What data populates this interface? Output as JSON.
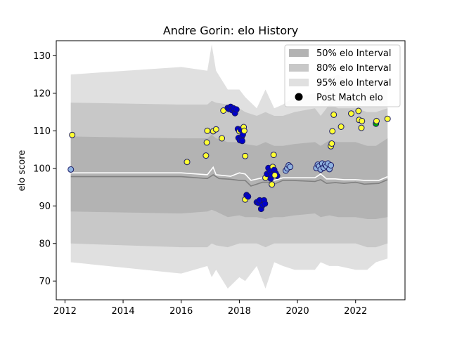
{
  "chart_data": {
    "type": "scatter",
    "title": "Andre Gorin: elo History",
    "xlabel": "",
    "ylabel": "elo score",
    "xlim": [
      2011.7,
      2023.7
    ],
    "ylim": [
      65,
      134
    ],
    "xticks": [
      2012,
      2014,
      2016,
      2018,
      2020,
      2022
    ],
    "yticks": [
      70,
      80,
      90,
      100,
      110,
      120,
      130
    ],
    "grid": false,
    "legend": {
      "position": "top-right",
      "entries": [
        {
          "label": "50% elo Interval",
          "color": "#b3b3b3"
        },
        {
          "label": "80% elo Interval",
          "color": "#c8c8c8"
        },
        {
          "label": "95% elo Interval",
          "color": "#e0e0e0"
        },
        {
          "label": "Post Match elo",
          "color": "#000000"
        }
      ]
    },
    "bands": {
      "x": [
        2012.2,
        2016.0,
        2016.9,
        2017.05,
        2017.2,
        2017.6,
        2018.0,
        2018.2,
        2018.6,
        2018.9,
        2019.2,
        2019.5,
        2019.9,
        2020.6,
        2020.8,
        2021.1,
        2021.4,
        2022.0,
        2022.4,
        2022.7,
        2023.1
      ],
      "q95_high": [
        125,
        127,
        126,
        133,
        126,
        121,
        121,
        119,
        116,
        121,
        116,
        117,
        119,
        120,
        117,
        124,
        125,
        122,
        123,
        122,
        123
      ],
      "q95_low": [
        75,
        72,
        74,
        71,
        73,
        68,
        71,
        70,
        74,
        68,
        75,
        74,
        73,
        73,
        75,
        74,
        74,
        73,
        73,
        75,
        76
      ],
      "q80_high": [
        117.5,
        117,
        117,
        118,
        117.5,
        117,
        116,
        115,
        114,
        115,
        114,
        114,
        115,
        116,
        114,
        117,
        116,
        116,
        115,
        115,
        116
      ],
      "q80_low": [
        80,
        79,
        79,
        80,
        79.5,
        79,
        80,
        80,
        80,
        79,
        80,
        80,
        80,
        80,
        80,
        80,
        80,
        80,
        79,
        79,
        80
      ],
      "q50_high": [
        108.5,
        108,
        108,
        109,
        108,
        107,
        107,
        106.5,
        106,
        107,
        106,
        106,
        106.5,
        107,
        106,
        107.5,
        107,
        107,
        106,
        106,
        108
      ],
      "q50_low": [
        88.5,
        88,
        88.5,
        89,
        88.5,
        87,
        87.5,
        87,
        87,
        86.5,
        87,
        87,
        87.5,
        88,
        87,
        87.5,
        87,
        87,
        86.5,
        86.5,
        87
      ]
    },
    "mean_line": {
      "name": "",
      "color": "#808080",
      "x": [
        2012.2,
        2016.0,
        2016.9,
        2017.1,
        2017.3,
        2017.7,
        2018.0,
        2018.2,
        2018.4,
        2018.8,
        2019.0,
        2019.2,
        2019.5,
        2019.8,
        2020.6,
        2020.8,
        2021.0,
        2021.3,
        2021.6,
        2022.0,
        2022.3,
        2022.8,
        2023.1
      ],
      "y": [
        97.8,
        97.8,
        97.3,
        98.3,
        97.3,
        97.1,
        96.8,
        96.8,
        95.3,
        96.3,
        96.3,
        95.8,
        96.8,
        96.8,
        96.5,
        97.0,
        96.0,
        96.2,
        96.0,
        96.3,
        95.8,
        96.0,
        97.0
      ]
    },
    "median_line": {
      "name": "",
      "color": "#ffffff",
      "x": [
        2012.2,
        2016.0,
        2016.9,
        2017.1,
        2017.2,
        2017.7,
        2018.0,
        2018.2,
        2018.4,
        2018.8,
        2019.0,
        2019.2,
        2019.5,
        2019.8,
        2020.6,
        2020.8,
        2021.0,
        2021.3,
        2021.6,
        2022.0,
        2022.3,
        2022.8,
        2023.1
      ],
      "y": [
        98.8,
        98.8,
        98.3,
        100.3,
        98.3,
        97.9,
        98.8,
        98.5,
        96.8,
        97.5,
        97.5,
        96.8,
        97.5,
        97.5,
        97.5,
        98.5,
        97.2,
        97.2,
        97.0,
        97.0,
        96.8,
        96.8,
        97.8
      ]
    },
    "points": [
      {
        "x": 2012.2,
        "y": 99.7,
        "fill": "#8fb2e0"
      },
      {
        "x": 2012.25,
        "y": 108.9,
        "fill": "#ffff33"
      },
      {
        "x": 2016.2,
        "y": 101.7,
        "fill": "#ffff33"
      },
      {
        "x": 2016.85,
        "y": 103.4,
        "fill": "#ffff33"
      },
      {
        "x": 2016.88,
        "y": 106.9,
        "fill": "#ffff33"
      },
      {
        "x": 2016.9,
        "y": 110.0,
        "fill": "#ffff33"
      },
      {
        "x": 2017.1,
        "y": 109.9,
        "fill": "#ffff33"
      },
      {
        "x": 2017.2,
        "y": 110.4,
        "fill": "#ffff33"
      },
      {
        "x": 2017.4,
        "y": 108.0,
        "fill": "#ffff33"
      },
      {
        "x": 2017.45,
        "y": 115.4,
        "fill": "#ffff33"
      },
      {
        "x": 2017.6,
        "y": 116.1,
        "fill": "#0000cc"
      },
      {
        "x": 2017.65,
        "y": 115.8,
        "fill": "#0000cc"
      },
      {
        "x": 2017.7,
        "y": 116.4,
        "fill": "#0000cc"
      },
      {
        "x": 2017.75,
        "y": 115.5,
        "fill": "#0000cc"
      },
      {
        "x": 2017.8,
        "y": 116.0,
        "fill": "#0000cc"
      },
      {
        "x": 2017.85,
        "y": 114.7,
        "fill": "#0000cc"
      },
      {
        "x": 2017.9,
        "y": 115.7,
        "fill": "#0000cc"
      },
      {
        "x": 2017.95,
        "y": 110.5,
        "fill": "#0000cc"
      },
      {
        "x": 2017.97,
        "y": 108.1,
        "fill": "#0000cc"
      },
      {
        "x": 2018.0,
        "y": 109.9,
        "fill": "#ffff33"
      },
      {
        "x": 2018.02,
        "y": 107.5,
        "fill": "#0000cc"
      },
      {
        "x": 2018.05,
        "y": 110.3,
        "fill": "#0000cc"
      },
      {
        "x": 2018.08,
        "y": 108.3,
        "fill": "#0000cc"
      },
      {
        "x": 2018.1,
        "y": 107.3,
        "fill": "#0000cc"
      },
      {
        "x": 2018.12,
        "y": 109.0,
        "fill": "#0000cc"
      },
      {
        "x": 2018.15,
        "y": 111.0,
        "fill": "#ffff33"
      },
      {
        "x": 2018.17,
        "y": 110.0,
        "fill": "#ffff33"
      },
      {
        "x": 2018.2,
        "y": 103.3,
        "fill": "#ffff33"
      },
      {
        "x": 2018.2,
        "y": 91.7,
        "fill": "#ffff33"
      },
      {
        "x": 2018.25,
        "y": 92.9,
        "fill": "#0000cc"
      },
      {
        "x": 2018.3,
        "y": 92.5,
        "fill": "#0000cc"
      },
      {
        "x": 2018.6,
        "y": 91.0,
        "fill": "#0000cc"
      },
      {
        "x": 2018.65,
        "y": 90.8,
        "fill": "#0000cc"
      },
      {
        "x": 2018.7,
        "y": 91.5,
        "fill": "#0000cc"
      },
      {
        "x": 2018.75,
        "y": 89.2,
        "fill": "#0000cc"
      },
      {
        "x": 2018.8,
        "y": 90.2,
        "fill": "#0000cc"
      },
      {
        "x": 2018.85,
        "y": 91.5,
        "fill": "#0000cc"
      },
      {
        "x": 2018.88,
        "y": 90.6,
        "fill": "#0000cc"
      },
      {
        "x": 2018.9,
        "y": 97.5,
        "fill": "#ffff33"
      },
      {
        "x": 2018.95,
        "y": 98.5,
        "fill": "#0000cc"
      },
      {
        "x": 2019.0,
        "y": 100.1,
        "fill": "#0000cc"
      },
      {
        "x": 2019.05,
        "y": 99.2,
        "fill": "#0000cc"
      },
      {
        "x": 2019.08,
        "y": 97.3,
        "fill": "#0000cc"
      },
      {
        "x": 2019.1,
        "y": 98.3,
        "fill": "#0000cc"
      },
      {
        "x": 2019.12,
        "y": 95.7,
        "fill": "#ffff33"
      },
      {
        "x": 2019.15,
        "y": 100.4,
        "fill": "#ffff33"
      },
      {
        "x": 2019.18,
        "y": 103.6,
        "fill": "#ffff33"
      },
      {
        "x": 2019.2,
        "y": 99.6,
        "fill": "#0000cc"
      },
      {
        "x": 2019.25,
        "y": 98.7,
        "fill": "#0000cc"
      },
      {
        "x": 2019.3,
        "y": 98.0,
        "fill": "#0000cc"
      },
      {
        "x": 2019.22,
        "y": 98.2,
        "fill": "#ffff33"
      },
      {
        "x": 2019.6,
        "y": 99.4,
        "fill": "#8fb2e0"
      },
      {
        "x": 2019.65,
        "y": 100.0,
        "fill": "#8fb2e0"
      },
      {
        "x": 2019.7,
        "y": 100.8,
        "fill": "#8fb2e0"
      },
      {
        "x": 2019.75,
        "y": 100.4,
        "fill": "#8fb2e0"
      },
      {
        "x": 2020.65,
        "y": 100.1,
        "fill": "#8fb2e0"
      },
      {
        "x": 2020.7,
        "y": 101.0,
        "fill": "#8fb2e0"
      },
      {
        "x": 2020.75,
        "y": 100.6,
        "fill": "#8fb2e0"
      },
      {
        "x": 2020.8,
        "y": 99.7,
        "fill": "#8fb2e0"
      },
      {
        "x": 2020.85,
        "y": 101.3,
        "fill": "#8fb2e0"
      },
      {
        "x": 2020.9,
        "y": 100.2,
        "fill": "#8fb2e0"
      },
      {
        "x": 2020.95,
        "y": 101.0,
        "fill": "#8fb2e0"
      },
      {
        "x": 2021.0,
        "y": 100.6,
        "fill": "#8fb2e0"
      },
      {
        "x": 2021.05,
        "y": 101.3,
        "fill": "#8fb2e0"
      },
      {
        "x": 2021.1,
        "y": 99.8,
        "fill": "#8fb2e0"
      },
      {
        "x": 2021.15,
        "y": 100.8,
        "fill": "#8fb2e0"
      },
      {
        "x": 2021.15,
        "y": 105.9,
        "fill": "#ffff33"
      },
      {
        "x": 2021.18,
        "y": 106.6,
        "fill": "#ffff33"
      },
      {
        "x": 2021.2,
        "y": 109.9,
        "fill": "#ffff33"
      },
      {
        "x": 2021.25,
        "y": 114.3,
        "fill": "#ffff33"
      },
      {
        "x": 2021.5,
        "y": 111.1,
        "fill": "#ffff33"
      },
      {
        "x": 2021.85,
        "y": 114.6,
        "fill": "#ffff33"
      },
      {
        "x": 2022.1,
        "y": 115.3,
        "fill": "#ffff33"
      },
      {
        "x": 2022.12,
        "y": 112.9,
        "fill": "#ffff33"
      },
      {
        "x": 2022.2,
        "y": 110.8,
        "fill": "#ffff33"
      },
      {
        "x": 2022.22,
        "y": 112.6,
        "fill": "#ffff33"
      },
      {
        "x": 2022.7,
        "y": 111.9,
        "fill": "#00aa00"
      },
      {
        "x": 2022.72,
        "y": 112.6,
        "fill": "#ffff33"
      },
      {
        "x": 2023.1,
        "y": 113.2,
        "fill": "#ffff33"
      }
    ]
  }
}
